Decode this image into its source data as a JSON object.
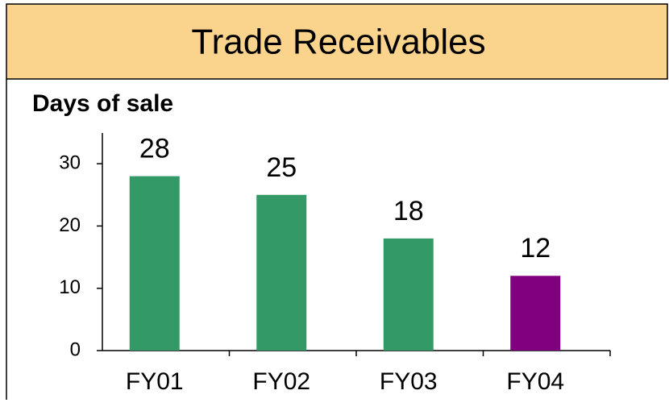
{
  "chart_data": {
    "type": "bar",
    "title": "Trade Receivables",
    "subtitle": "Days of sale",
    "categories": [
      "FY01",
      "FY02",
      "FY03",
      "FY04"
    ],
    "values": [
      28,
      25,
      18,
      12
    ],
    "colors": [
      "#339966",
      "#339966",
      "#339966",
      "#800080"
    ],
    "ylim": [
      0,
      35
    ],
    "yticks": [
      0,
      10,
      20,
      30
    ],
    "grid": false
  }
}
